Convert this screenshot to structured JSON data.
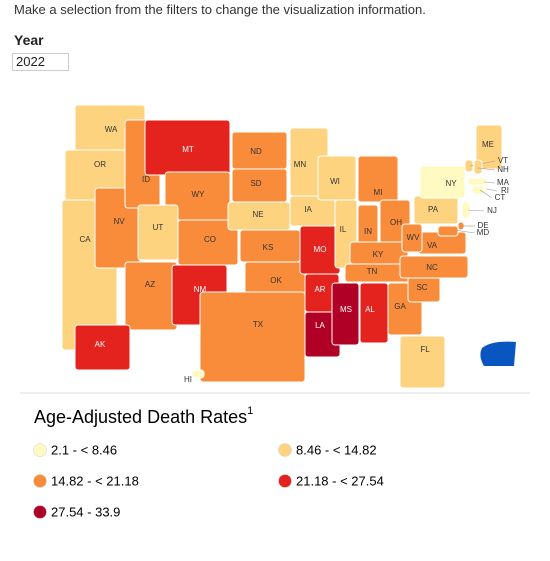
{
  "header": {
    "instruction": "Make a selection from the filters to change the visualization information.",
    "filter_label": "Year",
    "filter_value": "2022"
  },
  "map": {
    "states": [
      {
        "label": "WA",
        "color": "#fdd380"
      },
      {
        "label": "OR",
        "color": "#fdd380"
      },
      {
        "label": "CA",
        "color": "#fdd380"
      },
      {
        "label": "NV",
        "color": "#f98c3a"
      },
      {
        "label": "ID",
        "color": "#f98c3a"
      },
      {
        "label": "MT",
        "color": "#e4221e"
      },
      {
        "label": "WY",
        "color": "#f98c3a"
      },
      {
        "label": "UT",
        "color": "#fdd380"
      },
      {
        "label": "CO",
        "color": "#f98c3a"
      },
      {
        "label": "AZ",
        "color": "#f98c3a"
      },
      {
        "label": "NM",
        "color": "#e4221e"
      },
      {
        "label": "ND",
        "color": "#f98c3a"
      },
      {
        "label": "SD",
        "color": "#f98c3a"
      },
      {
        "label": "NE",
        "color": "#fdd380"
      },
      {
        "label": "KS",
        "color": "#f98c3a"
      },
      {
        "label": "OK",
        "color": "#f98c3a"
      },
      {
        "label": "TX",
        "color": "#f98c3a"
      },
      {
        "label": "MN",
        "color": "#fdd380"
      },
      {
        "label": "IA",
        "color": "#fdd380"
      },
      {
        "label": "MO",
        "color": "#e4221e"
      },
      {
        "label": "AR",
        "color": "#e4221e"
      },
      {
        "label": "LA",
        "color": "#b10026"
      },
      {
        "label": "WI",
        "color": "#fdd380"
      },
      {
        "label": "IL",
        "color": "#fdd380"
      },
      {
        "label": "MI",
        "color": "#f98c3a"
      },
      {
        "label": "IN",
        "color": "#f98c3a"
      },
      {
        "label": "OH",
        "color": "#f98c3a"
      },
      {
        "label": "KY",
        "color": "#f98c3a"
      },
      {
        "label": "TN",
        "color": "#f98c3a"
      },
      {
        "label": "MS",
        "color": "#b10026"
      },
      {
        "label": "AL",
        "color": "#e4221e"
      },
      {
        "label": "GA",
        "color": "#f98c3a"
      },
      {
        "label": "FL",
        "color": "#fdd380"
      },
      {
        "label": "SC",
        "color": "#f98c3a"
      },
      {
        "label": "NC",
        "color": "#f98c3a"
      },
      {
        "label": "VA",
        "color": "#f98c3a"
      },
      {
        "label": "WV",
        "color": "#f98c3a"
      },
      {
        "label": "PA",
        "color": "#fdd380"
      },
      {
        "label": "NY",
        "color": "#fefac2"
      },
      {
        "label": "ME",
        "color": "#fdd380"
      },
      {
        "label": "VT",
        "color": "#fdd380"
      },
      {
        "label": "NH",
        "color": "#fdd380"
      },
      {
        "label": "MA",
        "color": "#fefac2"
      },
      {
        "label": "RI",
        "color": "#fefac2"
      },
      {
        "label": "CT",
        "color": "#fefac2"
      },
      {
        "label": "NJ",
        "color": "#fefac2"
      },
      {
        "label": "DE",
        "color": "#f98c3a"
      },
      {
        "label": "MD",
        "color": "#f98c3a"
      },
      {
        "label": "AK",
        "color": "#e4221e"
      },
      {
        "label": "HI",
        "color": "#fefac2"
      }
    ]
  },
  "legend": {
    "title": "Age-Adjusted Death Rates",
    "footnote": "1",
    "items": [
      {
        "label": "2.1 - < 8.46",
        "color": "#fefac2"
      },
      {
        "label": "8.46 - < 14.82",
        "color": "#fdd380"
      },
      {
        "label": "14.82 - < 21.18",
        "color": "#f98c3a"
      },
      {
        "label": "21.18 - < 27.54",
        "color": "#e4221e"
      },
      {
        "label": "27.54 - 33.9",
        "color": "#b10026"
      }
    ]
  }
}
